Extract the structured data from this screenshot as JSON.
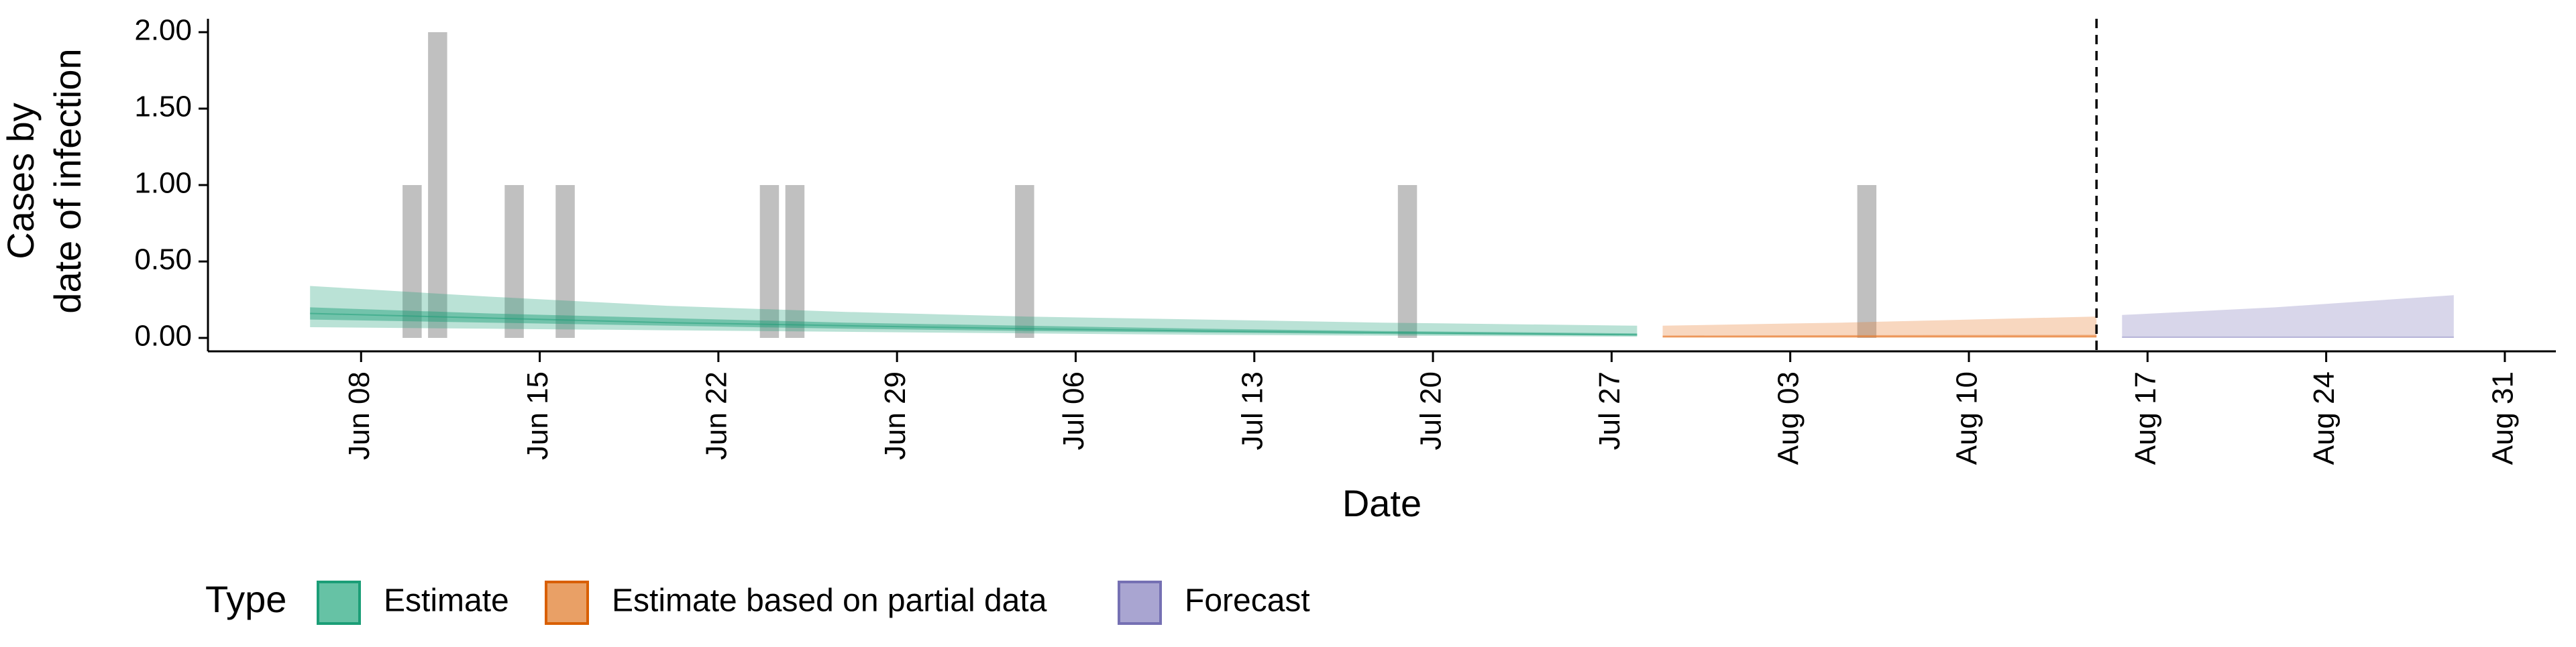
{
  "chart_data": {
    "type": "area",
    "xlabel": "Date",
    "ylabel": [
      "Cases by",
      "date of infection"
    ],
    "ylim": [
      0,
      2.0
    ],
    "x_range": [
      "2020-06-02",
      "2020-09-02"
    ],
    "x_ticks": [
      "2020-06-08",
      "2020-06-15",
      "2020-06-22",
      "2020-06-29",
      "2020-07-06",
      "2020-07-13",
      "2020-07-20",
      "2020-07-27",
      "2020-08-03",
      "2020-08-10",
      "2020-08-17",
      "2020-08-24",
      "2020-08-31"
    ],
    "x_tick_labels": [
      "Jun 08",
      "Jun 15",
      "Jun 22",
      "Jun 29",
      "Jul 06",
      "Jul 13",
      "Jul 20",
      "Jul 27",
      "Aug 03",
      "Aug 10",
      "Aug 17",
      "Aug 24",
      "Aug 31"
    ],
    "y_ticks": [
      0,
      0.5,
      1.0,
      1.5,
      2.0
    ],
    "y_tick_labels": [
      "0.00",
      "0.50",
      "1.00",
      "1.50",
      "2.00"
    ],
    "grid": false,
    "legend_position": "bottom",
    "observed_cases": [
      {
        "date": "2020-06-10",
        "value": 1
      },
      {
        "date": "2020-06-11",
        "value": 2
      },
      {
        "date": "2020-06-14",
        "value": 1
      },
      {
        "date": "2020-06-16",
        "value": 1
      },
      {
        "date": "2020-06-24",
        "value": 1
      },
      {
        "date": "2020-06-25",
        "value": 1
      },
      {
        "date": "2020-07-04",
        "value": 1
      },
      {
        "date": "2020-07-19",
        "value": 1
      },
      {
        "date": "2020-08-06",
        "value": 1
      }
    ],
    "forecast_start": "2020-08-15",
    "series": [
      {
        "name": "Estimate",
        "x": [
          "2020-06-06",
          "2020-06-13",
          "2020-06-20",
          "2020-06-27",
          "2020-07-04",
          "2020-07-11",
          "2020-07-18",
          "2020-07-28"
        ],
        "median": [
          0.16,
          0.13,
          0.1,
          0.08,
          0.06,
          0.045,
          0.035,
          0.02
        ],
        "lower50": [
          0.12,
          0.1,
          0.08,
          0.06,
          0.045,
          0.035,
          0.025,
          0.015
        ],
        "upper50": [
          0.2,
          0.16,
          0.13,
          0.1,
          0.08,
          0.06,
          0.045,
          0.03
        ],
        "lower90": [
          0.07,
          0.06,
          0.05,
          0.04,
          0.03,
          0.02,
          0.015,
          0.008
        ],
        "upper90": [
          0.34,
          0.27,
          0.21,
          0.17,
          0.14,
          0.12,
          0.1,
          0.08
        ]
      },
      {
        "name": "Estimate based on partial data",
        "x": [
          "2020-07-29",
          "2020-08-05",
          "2020-08-15"
        ],
        "median": [
          0.01,
          0.01,
          0.01
        ],
        "lower50": [
          0.005,
          0.005,
          0.005
        ],
        "upper50": [
          0.015,
          0.018,
          0.02
        ],
        "lower90": [
          0.0,
          0.0,
          0.0
        ],
        "upper90": [
          0.08,
          0.1,
          0.14
        ]
      },
      {
        "name": "Forecast",
        "x": [
          "2020-08-16",
          "2020-08-22",
          "2020-08-29"
        ],
        "median": [
          0.005,
          0.005,
          0.005
        ],
        "lower50": [
          0.0,
          0.0,
          0.0
        ],
        "upper50": [
          0.01,
          0.01,
          0.01
        ],
        "lower90": [
          0.0,
          0.0,
          0.0
        ],
        "upper90": [
          0.15,
          0.2,
          0.28
        ]
      }
    ]
  },
  "legend": {
    "title": "Type",
    "items": [
      {
        "label": "Estimate",
        "fill": "#66C2A5",
        "stroke": "#1B9E77"
      },
      {
        "label": "Estimate based on partial data",
        "fill": "#E9A066",
        "stroke": "#D95F02"
      },
      {
        "label": "Forecast",
        "fill": "#A9A5D1",
        "stroke": "#7570B3"
      }
    ]
  },
  "colors": {
    "estimate_band": "#1B9E77",
    "partial_band": "#E87A2B",
    "forecast_band": "#A9A5D1",
    "observed_bar": "#9E9E9E",
    "axis": "#000000"
  }
}
